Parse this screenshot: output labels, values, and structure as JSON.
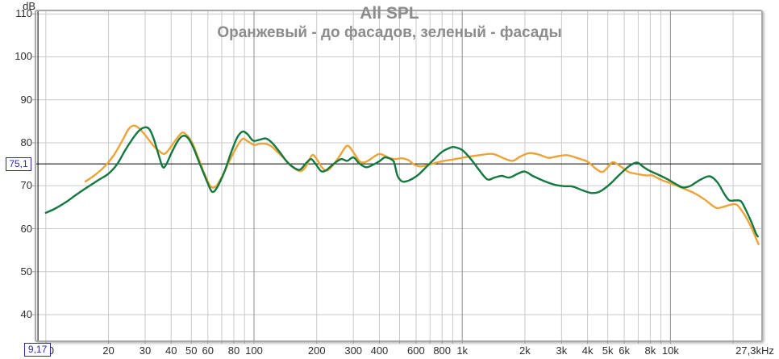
{
  "header": {
    "title": "All SPL",
    "subtitle": "Оранжевый - до фасадов, зеленый - фасады"
  },
  "y_axis": {
    "unit": "dB",
    "ticks": [
      110,
      100,
      90,
      80,
      70,
      60,
      50,
      40
    ]
  },
  "x_axis": {
    "ticks": [
      {
        "f": 10,
        "label": "10",
        "dx": 3
      },
      {
        "f": 20,
        "label": "20",
        "dx": 0
      },
      {
        "f": 30,
        "label": "30",
        "dx": 0
      },
      {
        "f": 40,
        "label": "40",
        "dx": 0
      },
      {
        "f": 50,
        "label": "50",
        "dx": 0
      },
      {
        "f": 60,
        "label": "60",
        "dx": 0
      },
      {
        "f": 80,
        "label": "80",
        "dx": 0
      },
      {
        "f": 100,
        "label": "100",
        "dx": 0
      },
      {
        "f": 200,
        "label": "200",
        "dx": 0
      },
      {
        "f": 300,
        "label": "300",
        "dx": 0
      },
      {
        "f": 400,
        "label": "400",
        "dx": 0
      },
      {
        "f": 600,
        "label": "600",
        "dx": 0
      },
      {
        "f": 800,
        "label": "800",
        "dx": 0
      },
      {
        "f": 1000,
        "label": "1k",
        "dx": 0
      },
      {
        "f": 2000,
        "label": "2k",
        "dx": 0
      },
      {
        "f": 3000,
        "label": "3k",
        "dx": 0
      },
      {
        "f": 4000,
        "label": "4k",
        "dx": 0
      },
      {
        "f": 5000,
        "label": "5k",
        "dx": 0
      },
      {
        "f": 6000,
        "label": "6k",
        "dx": 0
      },
      {
        "f": 8000,
        "label": "8k",
        "dx": 0
      },
      {
        "f": 10000,
        "label": "10k",
        "dx": 0
      },
      {
        "f": 27300,
        "label": "27,3kHz",
        "dx": -8
      }
    ],
    "grid_major": [
      100,
      1000,
      10000
    ]
  },
  "cursor": {
    "db": 75.1,
    "db_label": "75,1",
    "hz": 9.17,
    "hz_label": "9,17"
  },
  "colors": {
    "grid": "#c9c9c9",
    "grid_major": "#8f8f8f",
    "frame": "#a9a9a9",
    "title_text": "#8c8c8c",
    "tick_text": "#2e2e2e",
    "tick_mark": "#9a9a9a",
    "cursor_line": "#000000",
    "cursor_box": "#2a2aae",
    "orange": "#eca437",
    "green": "#13793f"
  },
  "chart_data": {
    "type": "line",
    "title": "All SPL",
    "subtitle": "Оранжевый - до фасадов, зеленый - фасады",
    "x_scale": "log",
    "x_unit": "Hz",
    "y_unit": "dB",
    "xlim": [
      9,
      27300
    ],
    "ylim": [
      34,
      110.6
    ],
    "grid": true,
    "legend": "none (colors explained in subtitle)",
    "cursor": {
      "freq_hz": 9.17,
      "level_db": 75.1
    },
    "series": [
      {
        "name": "Оранжевый — до фасадов",
        "color": "#eca437",
        "points": [
          [
            15.5,
            71.0
          ],
          [
            17,
            72.3
          ],
          [
            19,
            74.3
          ],
          [
            21,
            76.8
          ],
          [
            23,
            80.0
          ],
          [
            25,
            83.2
          ],
          [
            26.5,
            84.0
          ],
          [
            28,
            83.4
          ],
          [
            30,
            81.8
          ],
          [
            33,
            79.2
          ],
          [
            35,
            78.1
          ],
          [
            37,
            77.4
          ],
          [
            39,
            78.4
          ],
          [
            42,
            80.6
          ],
          [
            45,
            82.3
          ],
          [
            47,
            82.0
          ],
          [
            50,
            80.4
          ],
          [
            54,
            76.5
          ],
          [
            58,
            72.6
          ],
          [
            61,
            70.3
          ],
          [
            63,
            69.6
          ],
          [
            66,
            70.0
          ],
          [
            71,
            72.6
          ],
          [
            76,
            75.6
          ],
          [
            82,
            78.8
          ],
          [
            88,
            80.9
          ],
          [
            93,
            80.4
          ],
          [
            100,
            79.5
          ],
          [
            107,
            79.8
          ],
          [
            113,
            79.8
          ],
          [
            121,
            79.2
          ],
          [
            130,
            77.8
          ],
          [
            142,
            76.0
          ],
          [
            155,
            74.2
          ],
          [
            168,
            73.4
          ],
          [
            178,
            74.6
          ],
          [
            190,
            77.1
          ],
          [
            200,
            76.2
          ],
          [
            211,
            74.4
          ],
          [
            222,
            73.5
          ],
          [
            235,
            74.3
          ],
          [
            255,
            76.6
          ],
          [
            275,
            79.0
          ],
          [
            285,
            79.2
          ],
          [
            300,
            77.8
          ],
          [
            320,
            75.8
          ],
          [
            335,
            75.4
          ],
          [
            355,
            75.9
          ],
          [
            375,
            76.7
          ],
          [
            400,
            77.4
          ],
          [
            425,
            77.0
          ],
          [
            450,
            76.4
          ],
          [
            480,
            76.2
          ],
          [
            510,
            76.4
          ],
          [
            550,
            76.0
          ],
          [
            590,
            74.9
          ],
          [
            630,
            74.5
          ],
          [
            680,
            74.8
          ],
          [
            740,
            75.3
          ],
          [
            800,
            75.7
          ],
          [
            870,
            76.0
          ],
          [
            950,
            76.3
          ],
          [
            1050,
            76.7
          ],
          [
            1200,
            77.1
          ],
          [
            1400,
            77.4
          ],
          [
            1600,
            76.3
          ],
          [
            1750,
            75.8
          ],
          [
            1900,
            76.8
          ],
          [
            2100,
            77.6
          ],
          [
            2350,
            77.2
          ],
          [
            2600,
            76.5
          ],
          [
            2900,
            76.9
          ],
          [
            3200,
            77.1
          ],
          [
            3600,
            76.4
          ],
          [
            4000,
            75.6
          ],
          [
            4350,
            74.1
          ],
          [
            4700,
            73.2
          ],
          [
            5000,
            74.3
          ],
          [
            5300,
            75.5
          ],
          [
            5800,
            74.4
          ],
          [
            6300,
            73.2
          ],
          [
            7000,
            72.7
          ],
          [
            7700,
            72.4
          ],
          [
            8200,
            72.4
          ],
          [
            9000,
            71.4
          ],
          [
            10000,
            70.6
          ],
          [
            11500,
            69.4
          ],
          [
            13000,
            68.3
          ],
          [
            14500,
            66.9
          ],
          [
            16000,
            65.3
          ],
          [
            16800,
            64.8
          ],
          [
            18000,
            65.1
          ],
          [
            19500,
            65.6
          ],
          [
            20800,
            65.6
          ],
          [
            22000,
            64.2
          ],
          [
            23500,
            62.0
          ],
          [
            25000,
            59.3
          ],
          [
            26000,
            57.3
          ],
          [
            26500,
            56.4
          ]
        ]
      },
      {
        "name": "Зеленый — фасады",
        "color": "#13793f",
        "points": [
          [
            10,
            63.7
          ],
          [
            11,
            64.6
          ],
          [
            12.5,
            66.2
          ],
          [
            14,
            67.9
          ],
          [
            16,
            69.8
          ],
          [
            18,
            71.4
          ],
          [
            20,
            72.8
          ],
          [
            22,
            75.0
          ],
          [
            24,
            78.2
          ],
          [
            26,
            80.8
          ],
          [
            28,
            82.8
          ],
          [
            30,
            83.6
          ],
          [
            31.5,
            83.1
          ],
          [
            33,
            80.9
          ],
          [
            35,
            76.8
          ],
          [
            36.5,
            74.3
          ],
          [
            38,
            75.1
          ],
          [
            40,
            77.5
          ],
          [
            43,
            80.4
          ],
          [
            45.5,
            81.6
          ],
          [
            48,
            81.2
          ],
          [
            51,
            79.0
          ],
          [
            55,
            75.0
          ],
          [
            59,
            71.4
          ],
          [
            62,
            69.0
          ],
          [
            64,
            68.6
          ],
          [
            67,
            69.9
          ],
          [
            72,
            73.2
          ],
          [
            78,
            78.0
          ],
          [
            83,
            81.2
          ],
          [
            88,
            82.6
          ],
          [
            93,
            82.0
          ],
          [
            99,
            80.5
          ],
          [
            106,
            80.7
          ],
          [
            114,
            81.0
          ],
          [
            122,
            80.0
          ],
          [
            133,
            77.8
          ],
          [
            145,
            75.4
          ],
          [
            158,
            74.0
          ],
          [
            167,
            73.8
          ],
          [
            178,
            75.3
          ],
          [
            188,
            76.2
          ],
          [
            198,
            75.0
          ],
          [
            210,
            73.4
          ],
          [
            222,
            73.6
          ],
          [
            240,
            75.0
          ],
          [
            262,
            76.2
          ],
          [
            280,
            75.8
          ],
          [
            300,
            76.6
          ],
          [
            320,
            75.2
          ],
          [
            345,
            74.3
          ],
          [
            370,
            74.8
          ],
          [
            400,
            75.7
          ],
          [
            425,
            76.6
          ],
          [
            450,
            76.3
          ],
          [
            468,
            75.7
          ],
          [
            478,
            74.2
          ],
          [
            490,
            72.2
          ],
          [
            515,
            71.0
          ],
          [
            545,
            71.1
          ],
          [
            580,
            71.7
          ],
          [
            620,
            72.7
          ],
          [
            670,
            74.3
          ],
          [
            730,
            76.1
          ],
          [
            800,
            77.9
          ],
          [
            870,
            78.8
          ],
          [
            915,
            79.0
          ],
          [
            1000,
            78.3
          ],
          [
            1100,
            76.2
          ],
          [
            1200,
            73.8
          ],
          [
            1320,
            71.5
          ],
          [
            1430,
            71.9
          ],
          [
            1550,
            72.3
          ],
          [
            1680,
            71.9
          ],
          [
            1850,
            72.8
          ],
          [
            2000,
            73.3
          ],
          [
            2200,
            72.2
          ],
          [
            2500,
            71.0
          ],
          [
            2800,
            70.2
          ],
          [
            3100,
            69.9
          ],
          [
            3400,
            69.8
          ],
          [
            3800,
            68.9
          ],
          [
            4200,
            68.3
          ],
          [
            4600,
            68.7
          ],
          [
            5100,
            70.3
          ],
          [
            5700,
            72.6
          ],
          [
            6300,
            74.5
          ],
          [
            6900,
            75.4
          ],
          [
            7400,
            74.4
          ],
          [
            8000,
            73.4
          ],
          [
            8800,
            72.5
          ],
          [
            9700,
            71.5
          ],
          [
            10800,
            70.2
          ],
          [
            11500,
            69.6
          ],
          [
            12500,
            70.0
          ],
          [
            13800,
            71.3
          ],
          [
            15400,
            72.2
          ],
          [
            16800,
            70.8
          ],
          [
            18200,
            68.0
          ],
          [
            19200,
            66.6
          ],
          [
            20500,
            66.6
          ],
          [
            21800,
            66.4
          ],
          [
            23000,
            64.4
          ],
          [
            24500,
            61.5
          ],
          [
            25800,
            58.8
          ],
          [
            26300,
            58.2
          ]
        ]
      }
    ]
  }
}
